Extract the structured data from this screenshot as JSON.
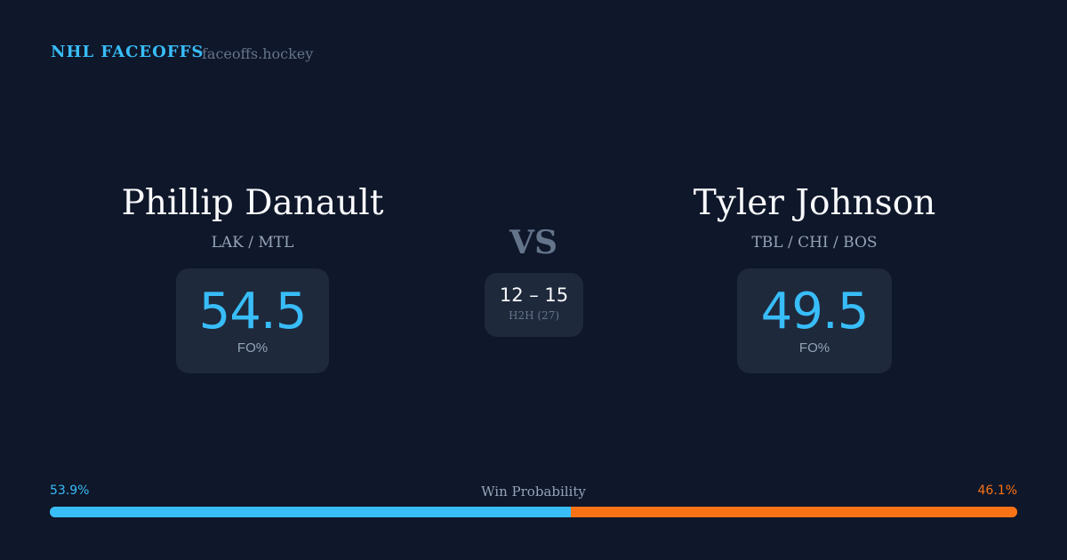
{
  "header": {
    "brand": "NHL FACEOFFS",
    "site": "faceoffs.hockey"
  },
  "left_player": {
    "name": "Phillip Danault",
    "teams": "LAK / MTL",
    "fo_pct": "54.5",
    "fo_label": "FO%"
  },
  "right_player": {
    "name": "Tyler Johnson",
    "teams": "TBL / CHI / BOS",
    "fo_pct": "49.5",
    "fo_label": "FO%"
  },
  "versus": {
    "label": "VS",
    "score": "12 – 15",
    "h2h_label": "H2H (27)"
  },
  "win_probability": {
    "title": "Win Probability",
    "left_label": "53.9%",
    "right_label": "46.1%",
    "left_value": 53.9,
    "right_value": 46.1,
    "left_color": "#38bdf8",
    "right_color": "#f97316"
  }
}
